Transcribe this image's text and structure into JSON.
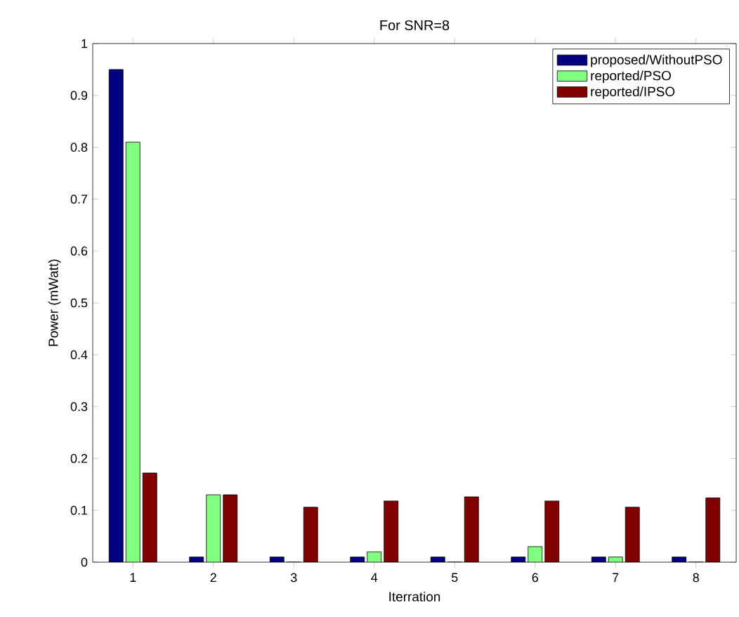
{
  "chart_data": {
    "type": "bar",
    "title": "For SNR=8",
    "xlabel": "Iterration",
    "ylabel": "Power (mWatt)",
    "categories": [
      "1",
      "2",
      "3",
      "4",
      "5",
      "6",
      "7",
      "8"
    ],
    "series": [
      {
        "name": "proposed/WithoutPSO",
        "color": "#000080",
        "values": [
          0.95,
          0.01,
          0.01,
          0.01,
          0.01,
          0.01,
          0.01,
          0.01
        ]
      },
      {
        "name": "reported/PSO",
        "color": "#80ff80",
        "values": [
          0.81,
          0.13,
          0,
          0.02,
          0,
          0.03,
          0.01,
          0
        ]
      },
      {
        "name": "reported/IPSO",
        "color": "#800000",
        "values": [
          0.172,
          0.13,
          0.106,
          0.118,
          0.126,
          0.118,
          0.106,
          0.124
        ]
      }
    ],
    "ylim": [
      0,
      1
    ],
    "yticks": [
      0,
      0.1,
      0.2,
      0.3,
      0.4,
      0.5,
      0.6,
      0.7,
      0.8,
      0.9,
      1
    ],
    "grid": false,
    "legend": "top right"
  }
}
